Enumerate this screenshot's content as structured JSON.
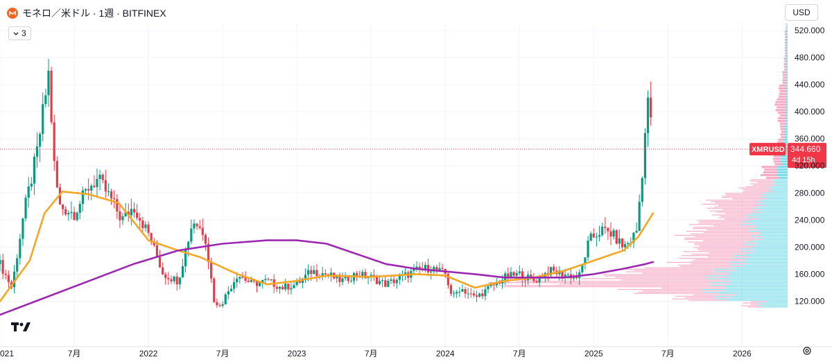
{
  "header": {
    "title": "モネロ／米ドル · 1週 · BITFINEX",
    "collapse_count": "3",
    "currency": "USD"
  },
  "price_tag": {
    "symbol": "XMRUSD",
    "price": "344.660",
    "countdown": "4d 15h",
    "color": "#f23645"
  },
  "colors": {
    "up": "#089981",
    "down": "#f23645",
    "ma_short": "#f5a623",
    "ma_long": "#9c27b0",
    "vp_up": "#4dd0e1",
    "vp_down": "#f48fb1",
    "text": "#131722"
  },
  "icons": {
    "logo": "monero-logo-icon",
    "collapse": "chevron-down-icon",
    "brand": "tradingview-logo-icon",
    "settings": "settings-icon"
  },
  "chart_data": {
    "type": "candlestick",
    "ylim": [
      100,
      520
    ],
    "y_ticks": [
      "520.000",
      "480.000",
      "440.000",
      "400.000",
      "360.000",
      "320.000",
      "280.000",
      "240.000",
      "200.000",
      "160.000",
      "120.000"
    ],
    "x_ticks": [
      "021",
      "7月",
      "2022",
      "7月",
      "2023",
      "7月",
      "2024",
      "7月",
      "2025",
      "7月",
      "2026"
    ],
    "x_tick_dates": [
      2021.0,
      2021.5,
      2022.0,
      2022.5,
      2023.0,
      2023.5,
      2024.0,
      2024.5,
      2025.0,
      2025.5,
      2026.0
    ],
    "x_range": [
      2021.0,
      2026.4
    ],
    "last_price": 344.66,
    "close_key_dates": [
      2021.0,
      2021.08,
      2021.16,
      2021.25,
      2021.33,
      2021.36,
      2021.4,
      2021.5,
      2021.6,
      2021.66,
      2021.75,
      2021.82,
      2021.9,
      2022.0,
      2022.1,
      2022.2,
      2022.3,
      2022.38,
      2022.45,
      2022.5,
      2022.6,
      2022.7,
      2022.8,
      2022.9,
      2023.0,
      2023.1,
      2023.2,
      2023.3,
      2023.4,
      2023.5,
      2023.6,
      2023.7,
      2023.8,
      2023.9,
      2024.0,
      2024.05,
      2024.1,
      2024.2,
      2024.3,
      2024.4,
      2024.5,
      2024.6,
      2024.7,
      2024.8,
      2024.9,
      2024.97,
      2025.05,
      2025.12,
      2025.2,
      2025.25,
      2025.29,
      2025.33,
      2025.36,
      2025.38,
      2025.4
    ],
    "close_key_values": [
      175,
      140,
      250,
      340,
      460,
      330,
      260,
      250,
      290,
      300,
      270,
      240,
      260,
      220,
      160,
      150,
      240,
      220,
      110,
      120,
      160,
      145,
      150,
      140,
      145,
      165,
      160,
      150,
      160,
      155,
      145,
      155,
      165,
      170,
      160,
      125,
      140,
      125,
      140,
      155,
      160,
      150,
      165,
      160,
      155,
      210,
      225,
      220,
      200,
      210,
      225,
      320,
      410,
      410,
      345
    ],
    "ma_short": {
      "name": "",
      "dates": [
        2021.0,
        2021.2,
        2021.3,
        2021.42,
        2021.6,
        2021.8,
        2022.0,
        2022.2,
        2022.35,
        2022.6,
        2022.8,
        2023.0,
        2023.2,
        2023.5,
        2023.8,
        2024.0,
        2024.2,
        2024.4,
        2024.6,
        2024.8,
        2025.0,
        2025.2,
        2025.3,
        2025.4
      ],
      "values": [
        120,
        180,
        250,
        282,
        278,
        265,
        210,
        195,
        185,
        160,
        145,
        150,
        158,
        156,
        160,
        158,
        140,
        150,
        155,
        165,
        180,
        195,
        215,
        250
      ]
    },
    "ma_long": {
      "name": "",
      "dates": [
        2021.0,
        2021.3,
        2021.6,
        2021.9,
        2022.2,
        2022.5,
        2022.8,
        2023.0,
        2023.2,
        2023.4,
        2023.6,
        2023.8,
        2024.0,
        2024.2,
        2024.4,
        2024.6,
        2024.8,
        2025.0,
        2025.2,
        2025.35,
        2025.4
      ],
      "values": [
        100,
        125,
        150,
        175,
        195,
        205,
        210,
        210,
        205,
        190,
        175,
        168,
        164,
        160,
        155,
        155,
        155,
        160,
        168,
        175,
        178
      ]
    },
    "volume_profile": {
      "prices": [
        110,
        120,
        130,
        140,
        150,
        160,
        170,
        180,
        190,
        200,
        210,
        220,
        230,
        240,
        250,
        260,
        270,
        280,
        290,
        300,
        320,
        340,
        360,
        380,
        400,
        420,
        440,
        460,
        480,
        500,
        520
      ],
      "up": [
        40,
        95,
        110,
        100,
        105,
        95,
        75,
        70,
        60,
        55,
        45,
        50,
        60,
        55,
        45,
        40,
        35,
        25,
        20,
        15,
        10,
        6,
        5,
        3,
        3,
        2,
        2,
        2,
        2,
        2,
        2
      ],
      "down": [
        20,
        60,
        110,
        290,
        160,
        130,
        80,
        70,
        75,
        80,
        100,
        80,
        70,
        45,
        60,
        70,
        55,
        40,
        30,
        20,
        10,
        8,
        5,
        10,
        14,
        10,
        5,
        3,
        2,
        2,
        1
      ]
    }
  }
}
